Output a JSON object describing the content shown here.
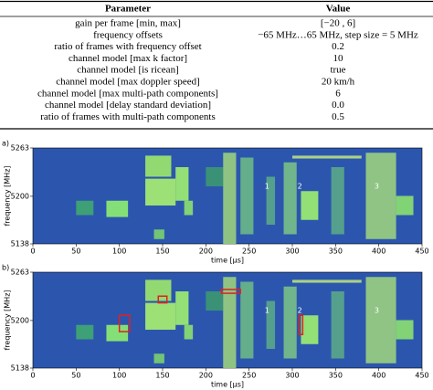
{
  "table": {
    "header": [
      "Parameter",
      "Value"
    ],
    "rows": [
      [
        "gain per frame [min, max]",
        "[−20 , 6]"
      ],
      [
        "frequency offsets",
        "−65 MHz…65 MHz, step size = 5 MHz"
      ],
      [
        "ratio of frames with frequency offset",
        "0.2"
      ],
      [
        "channel model [max k factor]",
        "10"
      ],
      [
        "channel model [is ricean]",
        "true"
      ],
      [
        "channel model [max doppler speed]",
        "20 km/h"
      ],
      [
        "channel model [max multi-path components]",
        "6"
      ],
      [
        "channel model [delay standard deviation]",
        "0.0"
      ],
      [
        "ratio of frames with multi-path components",
        "0.5"
      ]
    ]
  },
  "panels": [
    {
      "label": "a)",
      "xlabel": "time [μs]",
      "ylabel": "frequency [MHz]",
      "xlim": [
        0,
        450
      ],
      "ylim": [
        5138,
        5263
      ],
      "xticks": [
        0,
        50,
        100,
        150,
        200,
        250,
        300,
        350,
        400,
        450
      ],
      "yticks": [
        5138,
        5200,
        5263
      ],
      "annotations": [
        "1",
        "2",
        "3"
      ]
    },
    {
      "label": "b)",
      "xlabel": "time [μs]",
      "ylabel": "frequency [MHz]",
      "xlim": [
        0,
        450
      ],
      "ylim": [
        5138,
        5263
      ],
      "xticks": [
        0,
        50,
        100,
        150,
        200,
        250,
        300,
        350,
        400,
        450
      ],
      "yticks": [
        5138,
        5200,
        5263
      ],
      "annotations": [
        "1",
        "2",
        "3"
      ]
    }
  ]
}
